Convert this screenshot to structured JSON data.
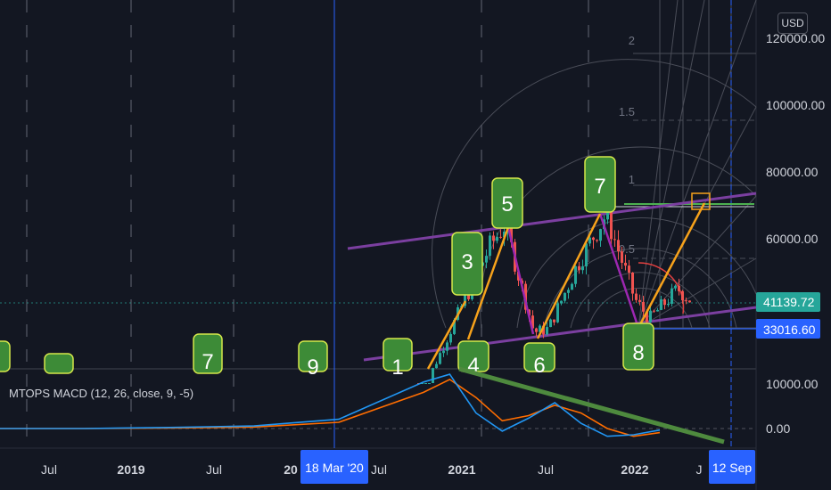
{
  "currency_button": "USD",
  "indicator_label": "MTOPS MACD (12, 26, close, 9, -5)",
  "colors": {
    "background": "#131722",
    "candle_up": "#26a69a",
    "candle_down": "#ef5350",
    "wave_line": "#9c27b0",
    "arrow_line": "#f7a21b",
    "channel": "#7b3fa0",
    "label_box": "#3d8b37",
    "label_border": "#d5e84a",
    "macd": "#2196f3",
    "signal": "#ff6d00",
    "trendline": "#4e8a3e",
    "crosshair": "#2962ff"
  },
  "chart_data": {
    "type": "line",
    "x_labels": [
      "Jul",
      "2019",
      "Jul",
      "20",
      "Jul",
      "2021",
      "Jul",
      "2022",
      "J"
    ],
    "crosshair_x_label": "18 Mar '20",
    "right_x_label": "12 Sep",
    "price_axis_labels": [
      "120000.00",
      "100000.00",
      "80000.00",
      "60000.00"
    ],
    "last_price": "41139.72",
    "crosshair_price": "33016.60",
    "macd_axis_labels": [
      "10000.00",
      "0.00"
    ],
    "fib_levels": [
      "2",
      "1.5",
      "1",
      "0.5"
    ],
    "wave_labels": [
      "7",
      "9",
      "1",
      "3",
      "4",
      "5",
      "6",
      "7",
      "8"
    ],
    "price_path": [
      [
        "2020-10",
        11500
      ],
      [
        "2021-01",
        40000
      ],
      [
        "2021-03",
        58000
      ],
      [
        "2021-04",
        64000
      ],
      [
        "2021-06",
        32000
      ],
      [
        "2021-07",
        33000
      ],
      [
        "2021-09",
        52000
      ],
      [
        "2021-11",
        67000
      ],
      [
        "2022-01",
        42000
      ],
      [
        "2022-02",
        36000
      ],
      [
        "2022-04",
        45000
      ],
      [
        "2022-05",
        41139.72
      ]
    ],
    "macd_series": [
      {
        "values": [
          0,
          0,
          200,
          500,
          1800,
          9000,
          10500,
          3000,
          -500,
          2000,
          5000,
          1000,
          -1500,
          -1200,
          -300
        ]
      },
      {
        "values": [
          0,
          0,
          100,
          300,
          1200,
          7000,
          9500,
          6000,
          1500,
          2500,
          4500,
          3000,
          0,
          -1500,
          -800
        ]
      }
    ]
  }
}
